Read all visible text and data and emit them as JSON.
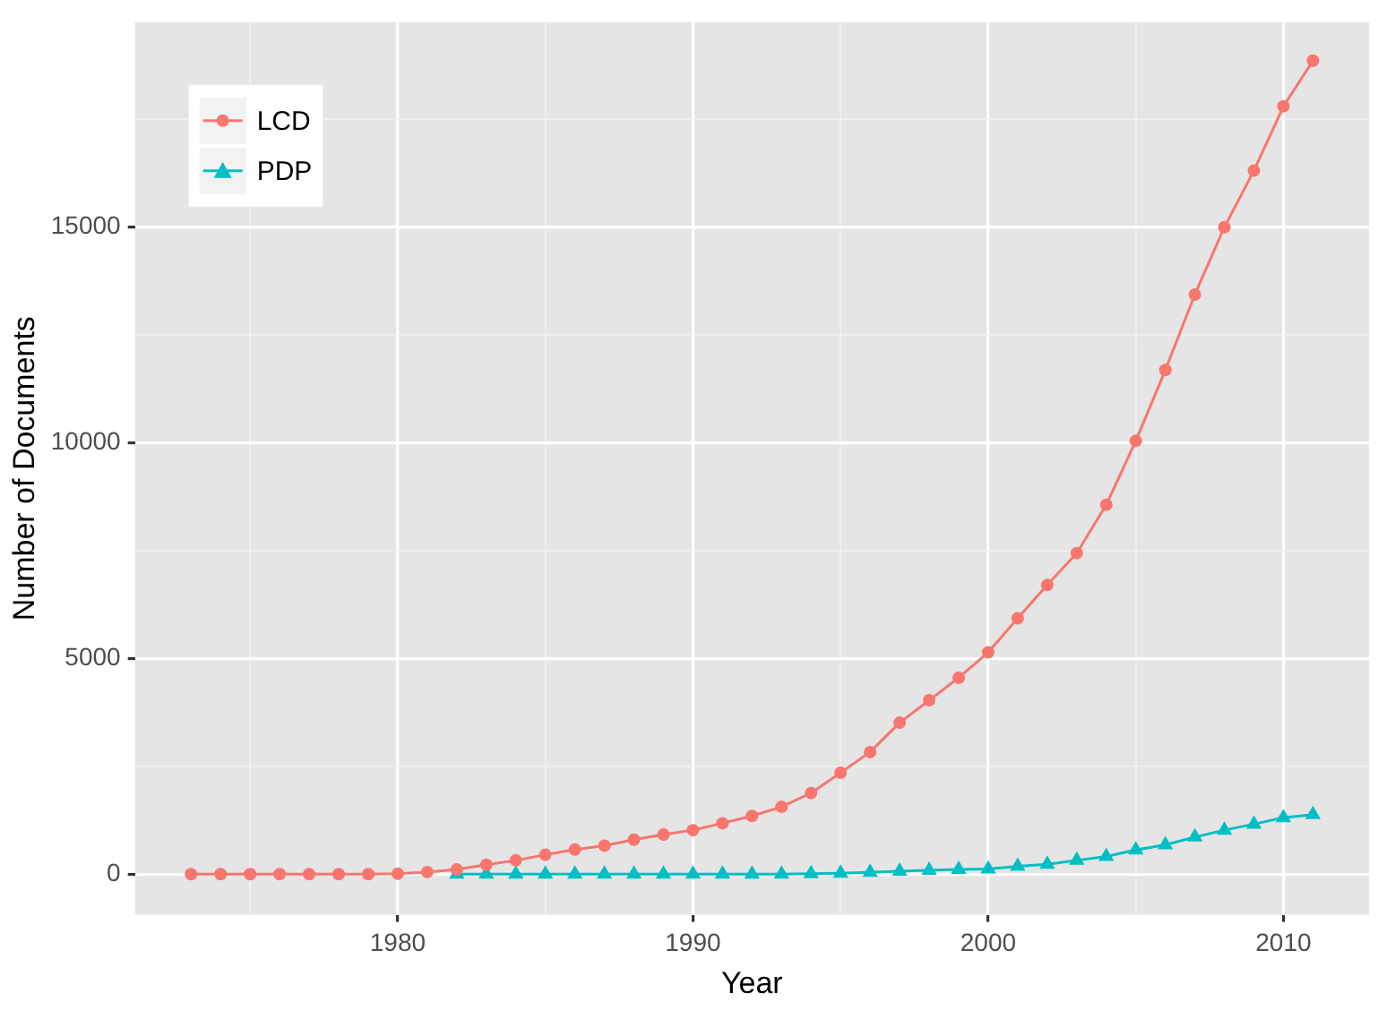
{
  "chart_data": {
    "type": "line",
    "xlabel": "Year",
    "ylabel": "Number of Documents",
    "xlim": [
      1971.1,
      2012.9
    ],
    "xticks": [
      {
        "value": 1975,
        "label": null
      },
      1980,
      {
        "value": 1985,
        "label": null
      },
      1990,
      {
        "value": 1995,
        "label": null
      },
      2000,
      {
        "value": 2005,
        "label": null
      },
      2010
    ],
    "ylim": [
      -940,
      19740
    ],
    "yticks": [
      0,
      {
        "value": 2500,
        "label": null
      },
      5000,
      {
        "value": 7500,
        "label": null
      },
      10000,
      {
        "value": 12500,
        "label": null
      },
      15000,
      {
        "value": 17500,
        "label": null
      }
    ],
    "grid": true,
    "legend": "top left",
    "line_style": "solid",
    "series": [
      {
        "name": "LCD",
        "color": "#f8766d",
        "marker": "circle",
        "x": [
          1973,
          1974,
          1975,
          1976,
          1977,
          1978,
          1979,
          1980,
          1981,
          1982,
          1983,
          1984,
          1985,
          1986,
          1987,
          1988,
          1989,
          1990,
          1991,
          1992,
          1993,
          1994,
          1995,
          1996,
          1997,
          1998,
          1999,
          2000,
          2001,
          2002,
          2003,
          2004,
          2005,
          2006,
          2007,
          2008,
          2009,
          2010,
          2011
        ],
        "values": [
          0,
          0,
          0,
          0,
          0,
          0,
          0,
          10,
          50,
          110,
          220,
          320,
          450,
          570,
          660,
          800,
          920,
          1020,
          1180,
          1350,
          1560,
          1880,
          2350,
          2830,
          3510,
          4030,
          4550,
          5140,
          5930,
          6700,
          7440,
          8560,
          10040,
          11680,
          13430,
          14990,
          16300,
          17790,
          18850
        ]
      },
      {
        "name": "PDP",
        "color": "#00bfc4",
        "marker": "triangle",
        "x": [
          1982,
          1983,
          1984,
          1985,
          1986,
          1987,
          1988,
          1989,
          1990,
          1991,
          1992,
          1993,
          1994,
          1995,
          1996,
          1997,
          1998,
          1999,
          2000,
          2001,
          2002,
          2003,
          2004,
          2005,
          2006,
          2007,
          2008,
          2009,
          2010,
          2011
        ],
        "values": [
          0,
          0,
          0,
          0,
          0,
          0,
          0,
          0,
          0,
          0,
          0,
          0,
          10,
          20,
          40,
          70,
          90,
          110,
          120,
          180,
          230,
          320,
          410,
          560,
          680,
          860,
          1020,
          1160,
          1310,
          1380
        ]
      }
    ]
  }
}
